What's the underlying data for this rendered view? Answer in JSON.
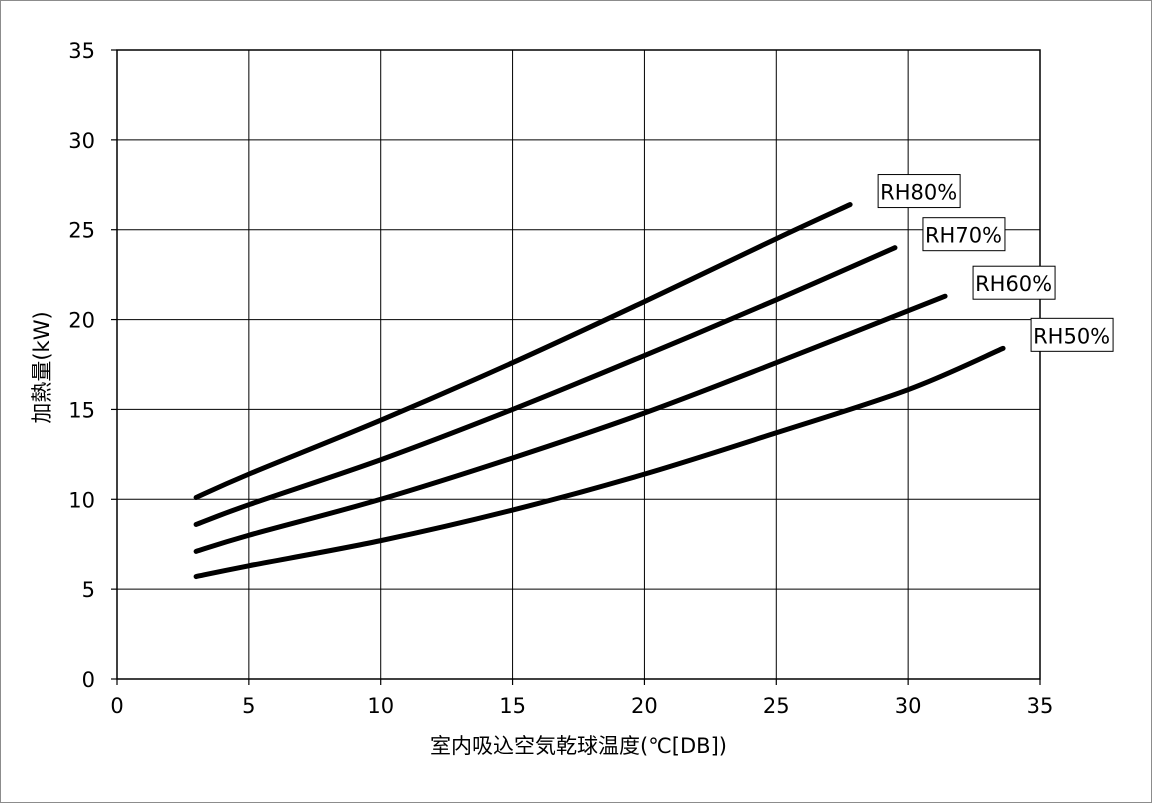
{
  "chart_data": {
    "type": "line",
    "title": "",
    "xlabel": "室内吸込空気乾球温度(℃[DB])",
    "ylabel": "加熱量(kW)",
    "xlim": [
      0,
      35
    ],
    "ylim": [
      0,
      35
    ],
    "xticks": [
      0,
      5,
      10,
      15,
      20,
      25,
      30,
      35
    ],
    "yticks": [
      0,
      5,
      10,
      15,
      20,
      25,
      30,
      35
    ],
    "grid": true,
    "legend": "none",
    "line_color": "#000000",
    "series": [
      {
        "name": "RH80%",
        "x": [
          3,
          5,
          10,
          15,
          20,
          25,
          27.8
        ],
        "values": [
          10.1,
          11.4,
          14.4,
          17.6,
          21.0,
          24.5,
          26.4
        ]
      },
      {
        "name": "RH70%",
        "x": [
          3,
          5,
          10,
          15,
          20,
          25,
          29.5
        ],
        "values": [
          8.6,
          9.7,
          12.2,
          15.0,
          18.0,
          21.1,
          24.0
        ]
      },
      {
        "name": "RH60%",
        "x": [
          3,
          5,
          10,
          15,
          20,
          25,
          31.4
        ],
        "values": [
          7.1,
          8.0,
          10.0,
          12.3,
          14.8,
          17.6,
          21.3
        ]
      },
      {
        "name": "RH50%",
        "x": [
          3,
          5,
          10,
          15,
          20,
          25,
          30,
          33.6
        ],
        "values": [
          5.7,
          6.3,
          7.7,
          9.4,
          11.4,
          13.7,
          16.1,
          18.4
        ]
      }
    ]
  }
}
